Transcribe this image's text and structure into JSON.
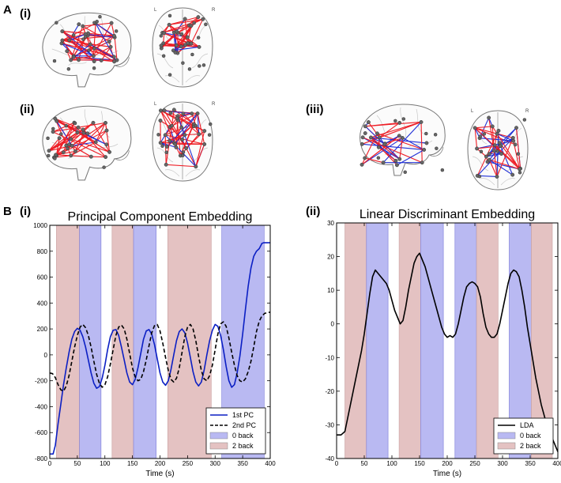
{
  "figure": {
    "panel_a_letter": "A",
    "panel_b_letter": "B",
    "brain_labels": [
      "(i)",
      "(ii)",
      "(iii)"
    ],
    "axial_left": "L",
    "axial_right": "R",
    "colors": {
      "red_edge": "#ee1c24",
      "blue_edge": "#1f2fd6",
      "node": "#666666",
      "outline": "#777777",
      "blue_block": "#b9b9f2",
      "red_block": "#e4c2c2"
    }
  },
  "chart_data": [
    {
      "type": "line",
      "panel_label": "(i)",
      "title": "Principal Component Embedding",
      "xlabel": "Time (s)",
      "ylabel": "",
      "xlim": [
        0,
        400
      ],
      "ylim": [
        -800,
        1000
      ],
      "xticks": [
        0,
        50,
        100,
        150,
        200,
        250,
        300,
        350,
        400
      ],
      "yticks": [
        -800,
        -600,
        -400,
        -200,
        0,
        200,
        400,
        600,
        800,
        1000
      ],
      "blocks": [
        {
          "start": 12,
          "end": 54,
          "condition": "2 back"
        },
        {
          "start": 54,
          "end": 93,
          "condition": "0 back"
        },
        {
          "start": 113,
          "end": 152,
          "condition": "2 back"
        },
        {
          "start": 152,
          "end": 193,
          "condition": "0 back"
        },
        {
          "start": 214,
          "end": 293,
          "condition": "2 back"
        },
        {
          "start": 312,
          "end": 389,
          "condition": "0 back"
        }
      ],
      "series": [
        {
          "name": "1st PC",
          "style": "solid",
          "color": "#0b1fc4",
          "x": [
            0,
            6,
            10,
            15,
            20,
            25,
            30,
            35,
            40,
            45,
            50,
            55,
            60,
            65,
            70,
            75,
            80,
            85,
            90,
            95,
            100,
            105,
            110,
            115,
            120,
            125,
            130,
            135,
            140,
            145,
            150,
            155,
            160,
            165,
            170,
            175,
            180,
            185,
            190,
            195,
            200,
            205,
            210,
            215,
            220,
            225,
            230,
            235,
            240,
            245,
            250,
            255,
            260,
            265,
            270,
            275,
            280,
            285,
            290,
            295,
            300,
            305,
            310,
            315,
            320,
            325,
            330,
            335,
            340,
            345,
            350,
            355,
            360,
            365,
            370,
            375,
            380,
            385,
            388,
            392,
            400
          ],
          "values": [
            -765,
            -765,
            -700,
            -530,
            -380,
            -230,
            -100,
            20,
            120,
            180,
            205,
            190,
            140,
            60,
            -40,
            -140,
            -220,
            -258,
            -245,
            -180,
            -80,
            40,
            140,
            190,
            195,
            150,
            60,
            -40,
            -140,
            -210,
            -230,
            -190,
            -100,
            10,
            120,
            185,
            195,
            160,
            80,
            -30,
            -140,
            -210,
            -235,
            -200,
            -110,
            0,
            110,
            180,
            200,
            170,
            90,
            -20,
            -130,
            -210,
            -240,
            -210,
            -120,
            0,
            110,
            190,
            235,
            220,
            150,
            40,
            -90,
            -200,
            -250,
            -230,
            -140,
            -10,
            160,
            350,
            530,
            670,
            760,
            800,
            820,
            860,
            865,
            865,
            865
          ]
        },
        {
          "name": "2nd PC",
          "style": "dashed",
          "color": "#000000",
          "x": [
            0,
            5,
            10,
            15,
            20,
            25,
            30,
            35,
            40,
            45,
            50,
            55,
            60,
            65,
            70,
            75,
            80,
            85,
            90,
            95,
            100,
            105,
            110,
            115,
            120,
            125,
            130,
            135,
            140,
            145,
            150,
            155,
            160,
            165,
            170,
            175,
            180,
            185,
            190,
            195,
            200,
            205,
            210,
            215,
            220,
            225,
            230,
            235,
            240,
            245,
            250,
            255,
            260,
            265,
            270,
            275,
            280,
            285,
            290,
            295,
            300,
            305,
            310,
            315,
            320,
            325,
            330,
            335,
            340,
            345,
            350,
            355,
            360,
            365,
            370,
            375,
            380,
            385,
            390,
            395,
            400
          ],
          "values": [
            -140,
            -145,
            -175,
            -230,
            -270,
            -280,
            -240,
            -160,
            -50,
            60,
            150,
            215,
            235,
            210,
            150,
            60,
            -50,
            -150,
            -220,
            -250,
            -230,
            -170,
            -70,
            40,
            150,
            215,
            230,
            200,
            120,
            10,
            -100,
            -170,
            -200,
            -190,
            -130,
            -40,
            70,
            170,
            225,
            235,
            185,
            90,
            -20,
            -120,
            -190,
            -210,
            -180,
            -100,
            20,
            140,
            215,
            235,
            200,
            110,
            -10,
            -120,
            -185,
            -200,
            -160,
            -80,
            40,
            160,
            240,
            255,
            220,
            130,
            20,
            -80,
            -160,
            -200,
            -210,
            -185,
            -130,
            -50,
            60,
            180,
            260,
            300,
            320,
            325,
            330
          ]
        }
      ],
      "legend": {
        "position": "bottom-right",
        "entries": [
          {
            "label": "1st PC",
            "kind": "line",
            "style": "solid",
            "color": "#0b1fc4"
          },
          {
            "label": "2nd PC",
            "kind": "line",
            "style": "dashed",
            "color": "#000000"
          },
          {
            "label": "0 back",
            "kind": "patch",
            "color": "#b9b9f2"
          },
          {
            "label": "2 back",
            "kind": "patch",
            "color": "#e4c2c2"
          }
        ]
      }
    },
    {
      "type": "line",
      "panel_label": "(ii)",
      "title": "Linear Discriminant Embedding",
      "xlabel": "Time (s)",
      "ylabel": "",
      "xlim": [
        0,
        400
      ],
      "ylim": [
        -40,
        30
      ],
      "xticks": [
        0,
        50,
        100,
        150,
        200,
        250,
        300,
        350,
        400
      ],
      "yticks": [
        -40,
        -30,
        -20,
        -10,
        0,
        10,
        20,
        30
      ],
      "blocks": [
        {
          "start": 15,
          "end": 54,
          "condition": "2 back"
        },
        {
          "start": 54,
          "end": 93,
          "condition": "0 back"
        },
        {
          "start": 113,
          "end": 152,
          "condition": "2 back"
        },
        {
          "start": 152,
          "end": 193,
          "condition": "0 back"
        },
        {
          "start": 214,
          "end": 253,
          "condition": "0 back"
        },
        {
          "start": 253,
          "end": 292,
          "condition": "2 back"
        },
        {
          "start": 312,
          "end": 352,
          "condition": "0 back"
        },
        {
          "start": 352,
          "end": 390,
          "condition": "2 back"
        }
      ],
      "series": [
        {
          "name": "LDA",
          "style": "solid",
          "color": "#000000",
          "x": [
            0,
            8,
            15,
            20,
            25,
            30,
            35,
            40,
            45,
            50,
            55,
            60,
            65,
            70,
            75,
            80,
            85,
            90,
            95,
            100,
            105,
            110,
            115,
            120,
            125,
            130,
            135,
            140,
            145,
            150,
            155,
            160,
            165,
            170,
            175,
            180,
            185,
            190,
            195,
            200,
            205,
            210,
            215,
            220,
            225,
            230,
            235,
            240,
            245,
            250,
            255,
            260,
            265,
            270,
            275,
            280,
            285,
            290,
            295,
            300,
            305,
            310,
            315,
            320,
            325,
            330,
            335,
            340,
            345,
            350,
            355,
            360,
            365,
            370,
            375,
            380,
            385,
            390,
            395,
            400
          ],
          "values": [
            -33,
            -33,
            -32,
            -28,
            -24,
            -20,
            -16,
            -12,
            -8,
            -3,
            3,
            9,
            14,
            16,
            15,
            14,
            13,
            12,
            10,
            7,
            4,
            2,
            0,
            1,
            5,
            10,
            14,
            18,
            20,
            21,
            19,
            17,
            14,
            11,
            8,
            5,
            2,
            -1,
            -3,
            -4,
            -3.5,
            -4,
            -3,
            0,
            4,
            8,
            11,
            12,
            12.5,
            12,
            11,
            8,
            3,
            -1,
            -3,
            -4,
            -4,
            -3,
            0,
            4,
            8,
            12,
            15,
            16,
            15.5,
            14,
            10,
            5,
            -1,
            -6,
            -11,
            -16,
            -20,
            -24,
            -27,
            -30,
            -32,
            -34,
            -36,
            -38
          ]
        }
      ],
      "legend": {
        "position": "bottom-right",
        "entries": [
          {
            "label": "LDA",
            "kind": "line",
            "style": "solid",
            "color": "#000000"
          },
          {
            "label": "0 back",
            "kind": "patch",
            "color": "#b9b9f2"
          },
          {
            "label": "2 back",
            "kind": "patch",
            "color": "#e4c2c2"
          }
        ]
      }
    }
  ]
}
